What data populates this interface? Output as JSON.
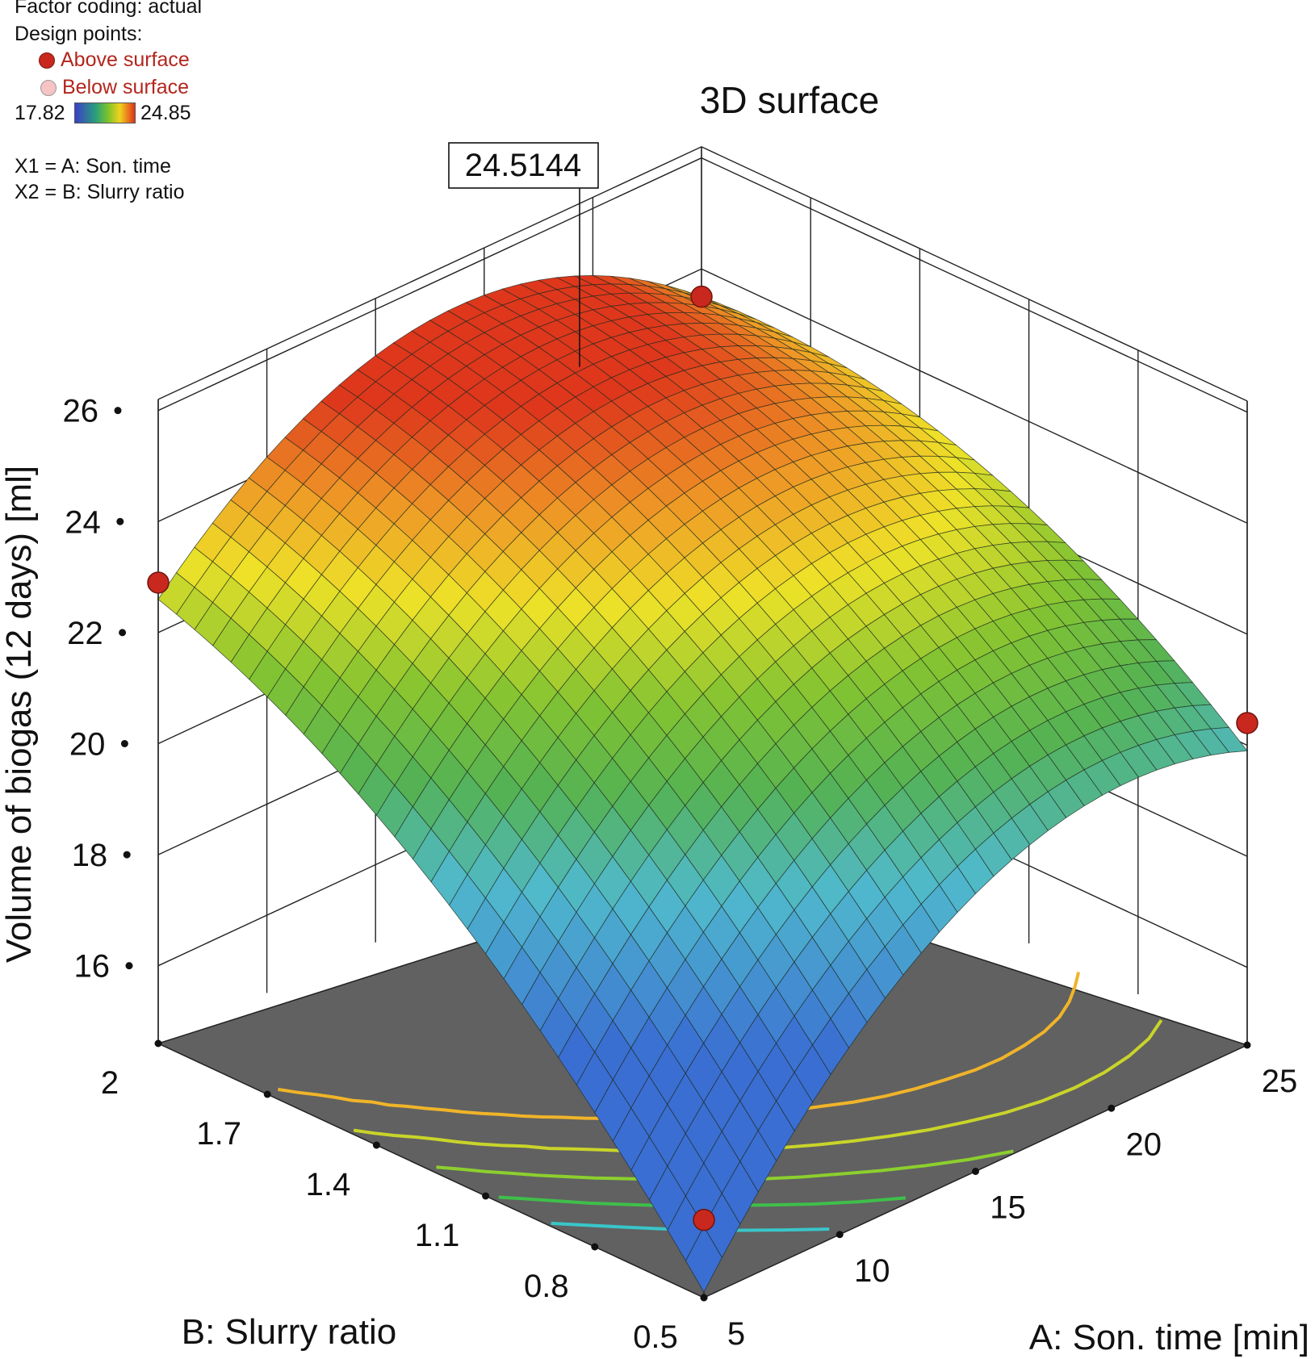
{
  "legend": {
    "factor_coding": "Factor coding: actual",
    "design_points": "Design points:",
    "above": "Above surface",
    "below": "Below surface",
    "scale_min": "17.82",
    "scale_max": "24.85",
    "x1": "X1 = A: Son. time",
    "x2": "X2 = B: Slurry ratio",
    "colors": {
      "above": "#c8281e",
      "below": "#f6c4c4"
    }
  },
  "chart_data": {
    "type": "surface3d",
    "title": "3D surface",
    "zlabel": "Volume of biogas (12 days) [ml]",
    "xlabel": "A: Son. time [min]",
    "ylabel": "B: Slurry ratio",
    "x_ticks": [
      "5",
      "10",
      "15",
      "20",
      "25"
    ],
    "y_ticks": [
      "0.5",
      "0.8",
      "1.1",
      "1.4",
      "1.7",
      "2"
    ],
    "z_ticks": [
      "16",
      "18",
      "20",
      "22",
      "24",
      "26"
    ],
    "xlim": [
      5,
      25
    ],
    "ylim": [
      0.5,
      2
    ],
    "zlim": [
      16,
      26
    ],
    "color_scale": [
      17.82,
      24.85
    ],
    "flag_label": "24.5144",
    "flag_point": {
      "x": 19,
      "y": 1.7,
      "z": 24.5144
    },
    "design_points": [
      {
        "x": 5,
        "y": 0.5,
        "z": 16.0
      },
      {
        "x": 5,
        "y": 2,
        "z": 22.9
      },
      {
        "x": 25,
        "y": 0.5,
        "z": 20.4
      },
      {
        "x": 25,
        "y": 2,
        "z": 23.5
      }
    ],
    "corner_values": [
      {
        "x": 5,
        "y": 0.5,
        "z": 14.7
      },
      {
        "x": 5,
        "y": 2,
        "z": 22.6
      },
      {
        "x": 25,
        "y": 0.5,
        "z": 19.9
      },
      {
        "x": 25,
        "y": 2,
        "z": 23.5
      }
    ],
    "contours": [
      22,
      21,
      20,
      19,
      18
    ]
  }
}
